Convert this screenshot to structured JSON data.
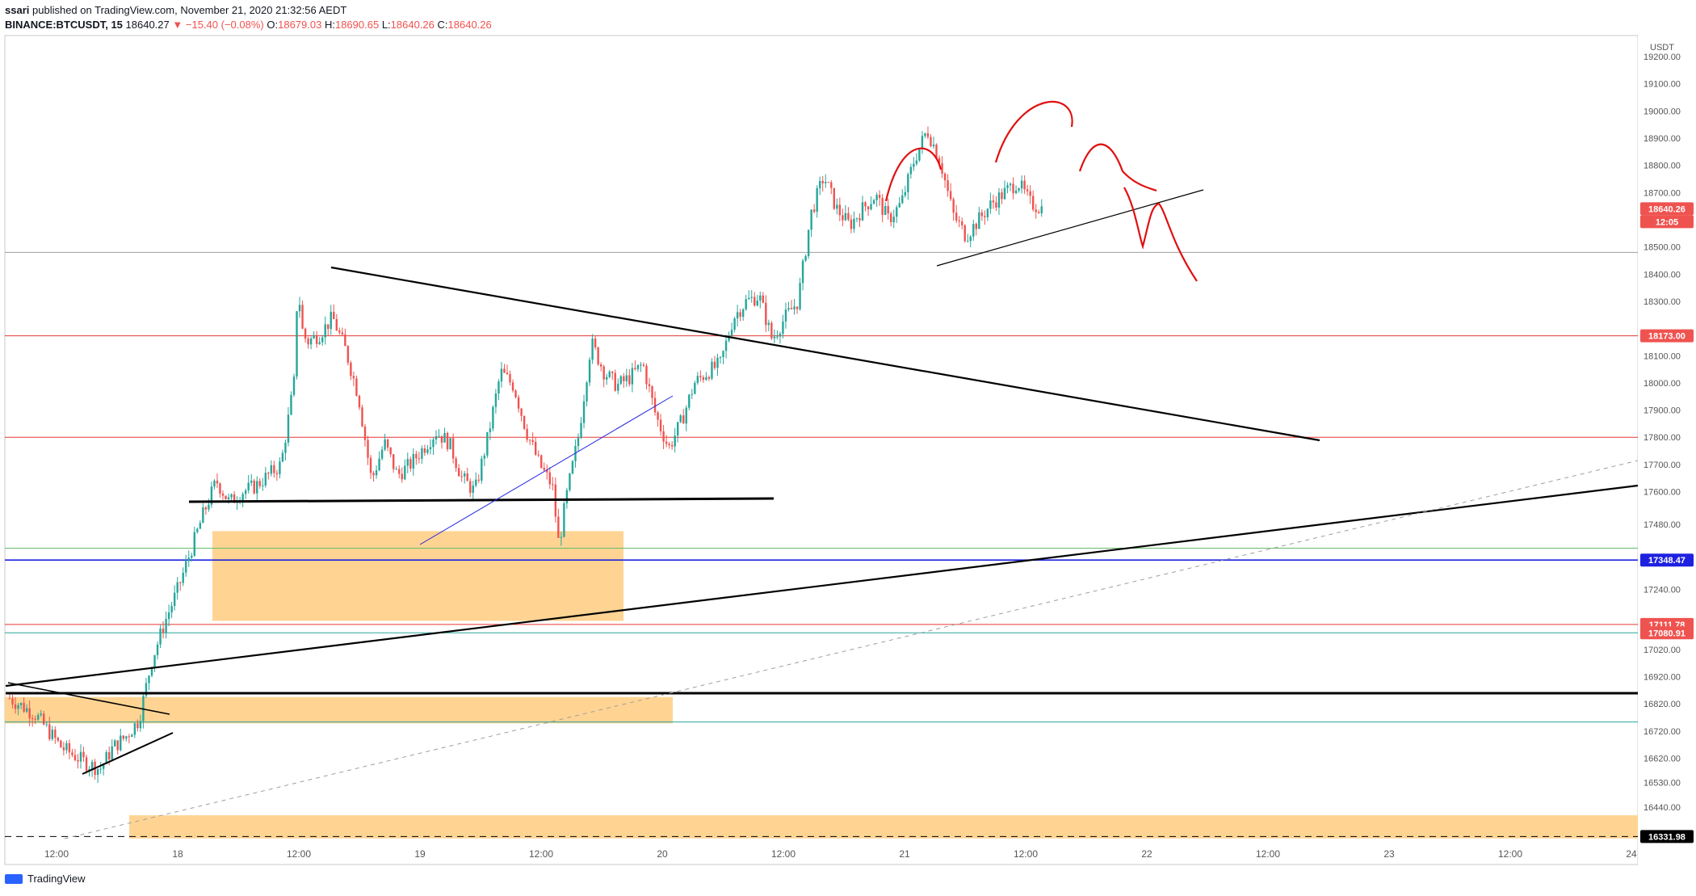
{
  "header": {
    "author": "ssari",
    "published_text": "published on TradingView.com, November 21, 2020 21:32:56 AEDT",
    "symbol": "BINANCE:BTCUSDT, 15",
    "last": "18640.27",
    "change": "−15.40 (−0.08%)",
    "o_label": "O:",
    "o_val": "18679.03",
    "h_label": "H:",
    "h_val": "18690.65",
    "l_label": "L:",
    "l_val": "18640.26",
    "c_label": "C:",
    "c_val": "18640.26"
  },
  "footer": {
    "brand": "TradingView"
  },
  "colors": {
    "up": "#26a69a",
    "down": "#ef5350",
    "zone": "#ffcc80",
    "red_line": "#e53935",
    "blue_line": "#1e22e0",
    "black": "#000000"
  },
  "chart_data": {
    "type": "candlestick",
    "symbol": "BINANCE:BTCUSDT",
    "timeframe": "15",
    "currency_label": "USDT",
    "ylim": [
      16250,
      19320
    ],
    "x_ticks": [
      "12:00",
      "18",
      "12:00",
      "19",
      "12:00",
      "20",
      "12:00",
      "21",
      "12:00",
      "22",
      "12:00",
      "23",
      "12:00",
      "24"
    ],
    "y_ticks": [
      16345,
      16440,
      16530,
      16620,
      16720,
      16820,
      16920,
      17020,
      17240,
      17480,
      17600,
      17700,
      17800,
      17900,
      18000,
      18100,
      18200,
      18300,
      18400,
      18500,
      18600,
      18700,
      18800,
      18900,
      19000,
      19100,
      19200
    ],
    "y_tick_labels": [
      "16440.00",
      "16530.00",
      "16620.00",
      "16720.00",
      "16820.00",
      "16920.00",
      "17020.00",
      "17240.00",
      "17480.00",
      "17600.00",
      "17700.00",
      "17800.00",
      "17900.00",
      "18000.00",
      "18100.00",
      "18300.00",
      "18400.00",
      "18500.00",
      "18700.00",
      "18800.00",
      "18900.00",
      "19000.00",
      "19100.00",
      "19200.00"
    ],
    "price_badges": [
      {
        "label": "18640.26",
        "value": 18640.26,
        "color": "#ef5350"
      },
      {
        "label": "12:05",
        "value": 18590,
        "color": "#ef5350"
      },
      {
        "label": "18173.00",
        "value": 18173,
        "color": "#ef5350"
      },
      {
        "label": "17348.47",
        "value": 17348.47,
        "color": "#1e22e0"
      },
      {
        "label": "17111.78",
        "value": 17111.78,
        "color": "#ef5350"
      },
      {
        "label": "17080.91",
        "value": 17080.91,
        "color": "#ef5350"
      },
      {
        "label": "16331.98",
        "value": 16331.98,
        "color": "#000000"
      }
    ],
    "horizontal_levels": [
      {
        "value": 18480,
        "color": "#9e9e9e"
      },
      {
        "value": 18173,
        "color": "#e53935"
      },
      {
        "value": 17800,
        "color": "#e53935"
      },
      {
        "value": 17392,
        "color": "#66bb6a"
      },
      {
        "value": 17348.47,
        "color": "#1e22e0"
      },
      {
        "value": 17111.78,
        "color": "#e53935"
      },
      {
        "value": 17080.91,
        "color": "#26a69a"
      },
      {
        "value": 16753,
        "color": "#26a69a"
      },
      {
        "value": 16331.98,
        "color": "#000000"
      }
    ],
    "price_path": [
      [
        0,
        16840
      ],
      [
        2,
        16780
      ],
      [
        4,
        16660
      ],
      [
        6,
        16600
      ],
      [
        7,
        16580
      ],
      [
        8,
        16660
      ],
      [
        9,
        16700
      ],
      [
        10,
        16760
      ],
      [
        11,
        16980
      ],
      [
        12,
        17120
      ],
      [
        13,
        17240
      ],
      [
        14,
        17380
      ],
      [
        15,
        17520
      ],
      [
        16,
        17640
      ],
      [
        17,
        17560
      ],
      [
        18,
        17600
      ],
      [
        19,
        17620
      ],
      [
        20,
        17660
      ],
      [
        21,
        17700
      ],
      [
        22,
        18000
      ],
      [
        22.3,
        18380
      ],
      [
        22.6,
        18200
      ],
      [
        23,
        18150
      ],
      [
        24,
        18180
      ],
      [
        25,
        18240
      ],
      [
        26,
        18120
      ],
      [
        27,
        17950
      ],
      [
        28,
        17640
      ],
      [
        29,
        17780
      ],
      [
        30,
        17660
      ],
      [
        31,
        17700
      ],
      [
        32,
        17760
      ],
      [
        33,
        17820
      ],
      [
        34,
        17780
      ],
      [
        35,
        17650
      ],
      [
        36,
        17600
      ],
      [
        37,
        17800
      ],
      [
        38,
        18040
      ],
      [
        39,
        17990
      ],
      [
        40,
        17820
      ],
      [
        41,
        17700
      ],
      [
        42,
        17620
      ],
      [
        42.5,
        17400
      ],
      [
        43,
        17560
      ],
      [
        44,
        17800
      ],
      [
        45,
        18150
      ],
      [
        46,
        18040
      ],
      [
        47,
        17990
      ],
      [
        48,
        18020
      ],
      [
        49,
        18070
      ],
      [
        50,
        17880
      ],
      [
        51,
        17760
      ],
      [
        52,
        17860
      ],
      [
        53,
        18000
      ],
      [
        54,
        18040
      ],
      [
        55,
        18070
      ],
      [
        56,
        18240
      ],
      [
        57,
        18300
      ],
      [
        58,
        18320
      ],
      [
        59,
        18160
      ],
      [
        60,
        18240
      ],
      [
        61,
        18300
      ],
      [
        62,
        18620
      ],
      [
        63,
        18760
      ],
      [
        64,
        18640
      ],
      [
        65,
        18580
      ],
      [
        66,
        18640
      ],
      [
        67,
        18690
      ],
      [
        68,
        18600
      ],
      [
        69,
        18660
      ],
      [
        70,
        18820
      ],
      [
        71,
        18930
      ],
      [
        72,
        18820
      ],
      [
        73,
        18620
      ],
      [
        74,
        18540
      ],
      [
        75,
        18600
      ],
      [
        76,
        18660
      ],
      [
        77,
        18700
      ],
      [
        78,
        18740
      ],
      [
        79,
        18660
      ],
      [
        80,
        18640
      ]
    ]
  }
}
